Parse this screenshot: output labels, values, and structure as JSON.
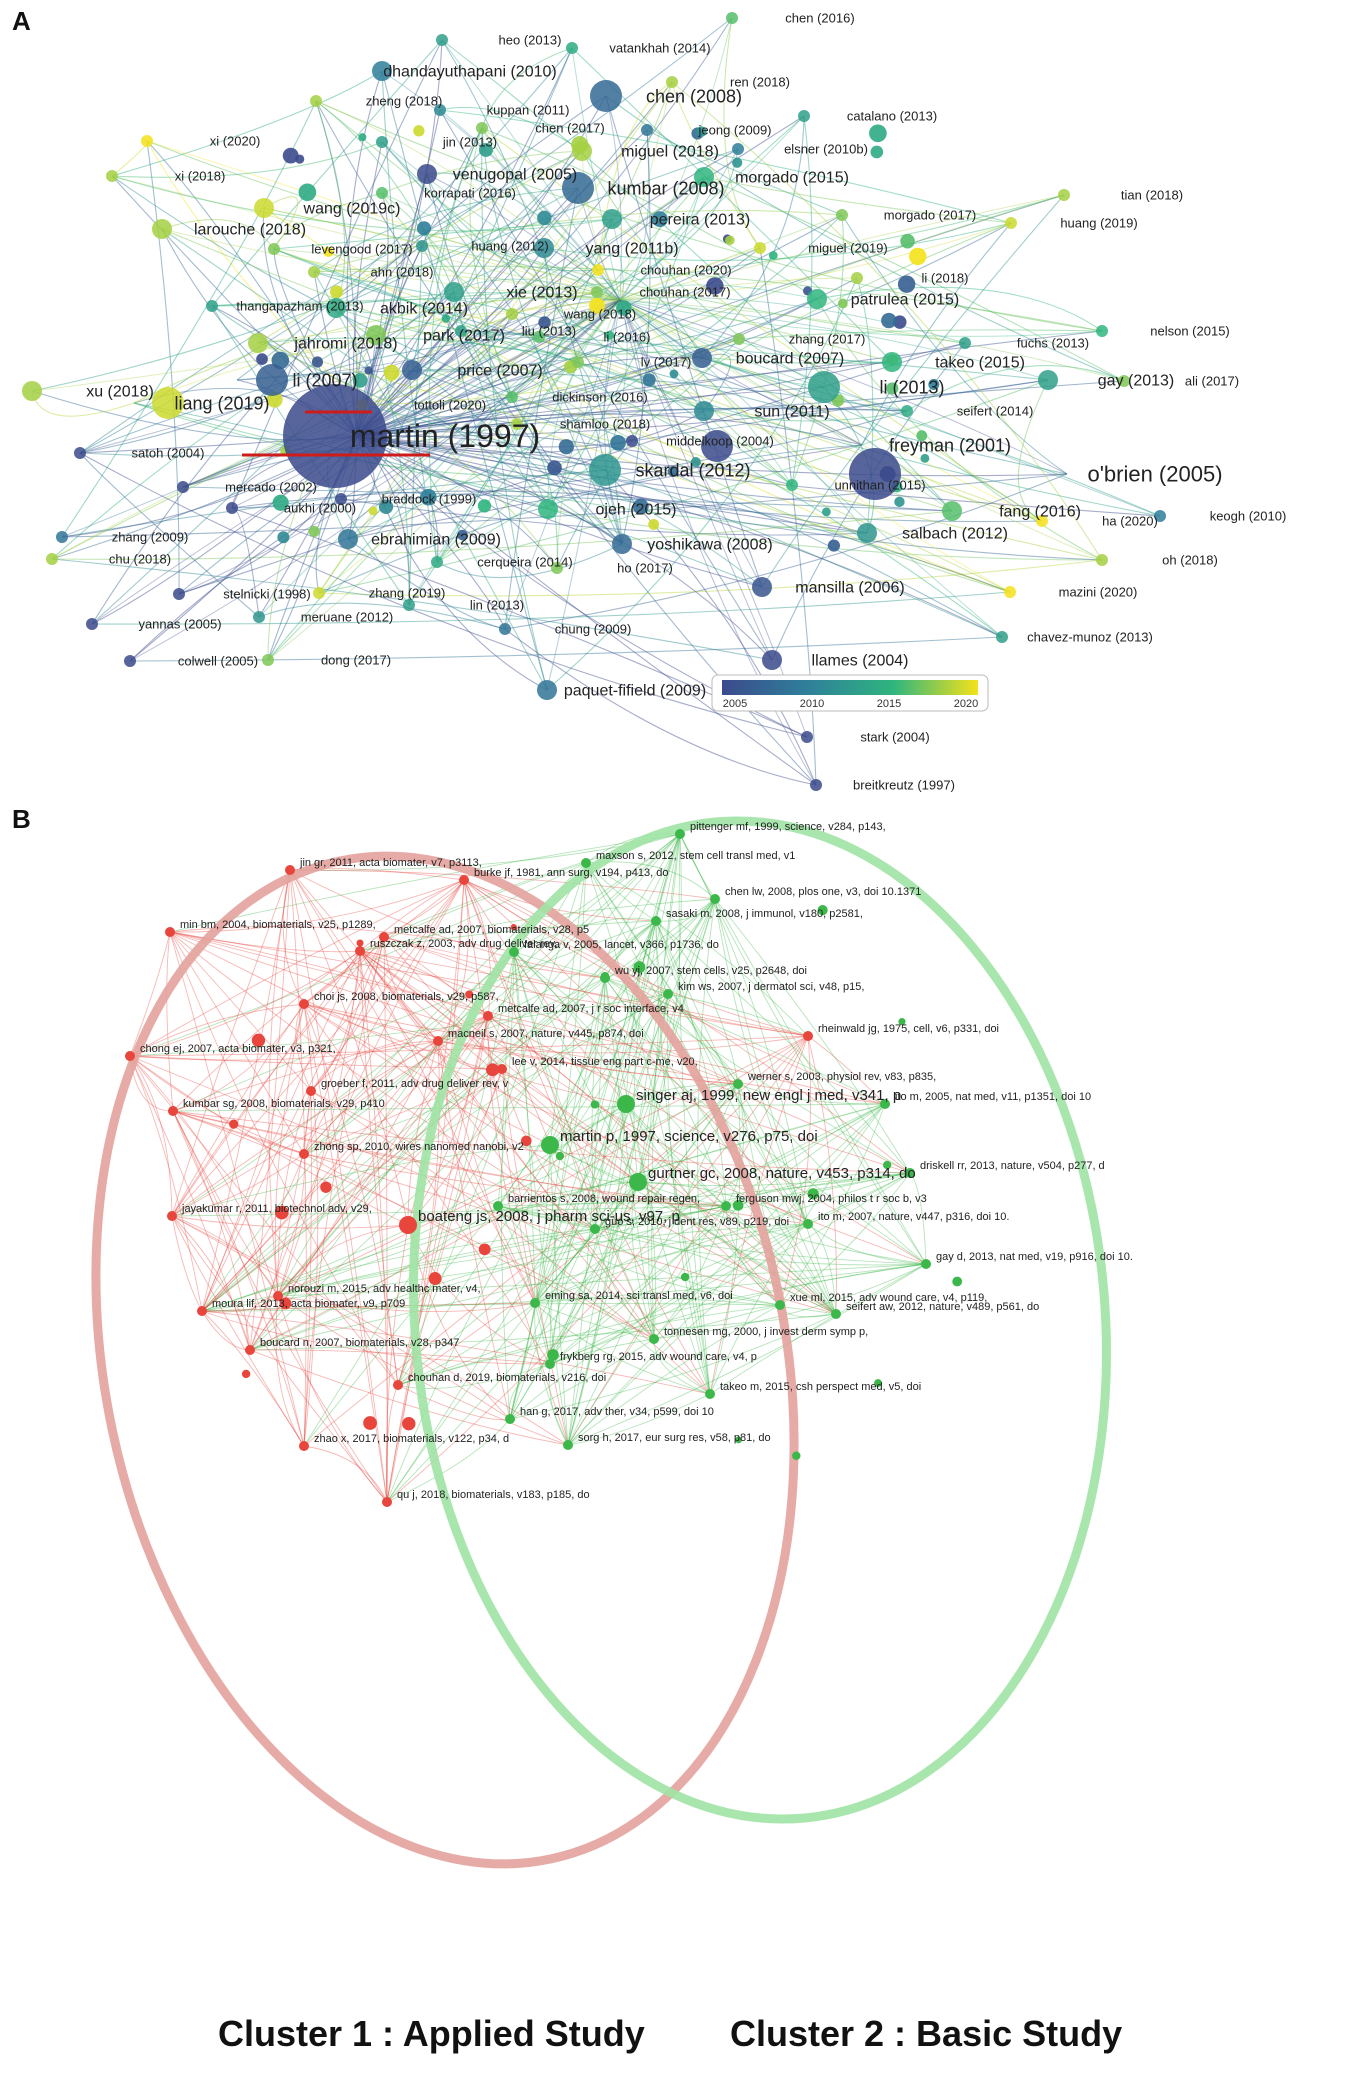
{
  "figure": {
    "panel_a_letter": "A",
    "panel_b_letter": "B",
    "caption_cluster1": "Cluster 1 : Applied Study",
    "caption_cluster2": "Cluster 2 : Basic Study"
  },
  "panel_a": {
    "legend": {
      "ticks": [
        "2005",
        "2010",
        "2015",
        "2020"
      ]
    },
    "nodes": [
      {
        "label": "chen (2016)",
        "year": 2016,
        "weight": 1
      },
      {
        "label": "heo (2013)",
        "year": 2013,
        "weight": 1
      },
      {
        "label": "vatankhah (2014)",
        "year": 2014,
        "weight": 1
      },
      {
        "label": "dhandayuthapani (2010)",
        "year": 2010,
        "weight": 2
      },
      {
        "label": "ren (2018)",
        "year": 2018,
        "weight": 1
      },
      {
        "label": "zheng (2018)",
        "year": 2018,
        "weight": 1
      },
      {
        "label": "kuppan (2011)",
        "year": 2011,
        "weight": 1
      },
      {
        "label": "chen (2008)",
        "year": 2008,
        "weight": 3
      },
      {
        "label": "catalano (2013)",
        "year": 2013,
        "weight": 1
      },
      {
        "label": "jin (2013)",
        "year": 2013,
        "weight": 1
      },
      {
        "label": "chen (2017)",
        "year": 2017,
        "weight": 1
      },
      {
        "label": "jeong (2009)",
        "year": 2009,
        "weight": 1
      },
      {
        "label": "xi (2020)",
        "year": 2020,
        "weight": 1
      },
      {
        "label": "miguel (2018)",
        "year": 2018,
        "weight": 2
      },
      {
        "label": "elsner (2010b)",
        "year": 2010,
        "weight": 1
      },
      {
        "label": "venugopal (2005)",
        "year": 2005,
        "weight": 2
      },
      {
        "label": "xi (2018)",
        "year": 2018,
        "weight": 1
      },
      {
        "label": "kumbar (2008)",
        "year": 2008,
        "weight": 3
      },
      {
        "label": "morgado (2015)",
        "year": 2015,
        "weight": 2
      },
      {
        "label": "korrapati (2016)",
        "year": 2016,
        "weight": 1
      },
      {
        "label": "tian (2018)",
        "year": 2018,
        "weight": 1
      },
      {
        "label": "wang (2019c)",
        "year": 2019,
        "weight": 2
      },
      {
        "label": "pereira (2013)",
        "year": 2013,
        "weight": 2
      },
      {
        "label": "morgado (2017)",
        "year": 2017,
        "weight": 1
      },
      {
        "label": "huang (2019)",
        "year": 2019,
        "weight": 1
      },
      {
        "label": "larouche (2018)",
        "year": 2018,
        "weight": 2
      },
      {
        "label": "levengood (2017)",
        "year": 2017,
        "weight": 1
      },
      {
        "label": "huang (2012)",
        "year": 2012,
        "weight": 1
      },
      {
        "label": "yang (2011b)",
        "year": 2011,
        "weight": 2
      },
      {
        "label": "miguel (2019)",
        "year": 2019,
        "weight": 1
      },
      {
        "label": "ahn (2018)",
        "year": 2018,
        "weight": 1
      },
      {
        "label": "chouhan (2020)",
        "year": 2020,
        "weight": 1
      },
      {
        "label": "li (2018)",
        "year": 2018,
        "weight": 1
      },
      {
        "label": "thangapazham (2013)",
        "year": 2013,
        "weight": 1
      },
      {
        "label": "akbik (2014)",
        "year": 2014,
        "weight": 2
      },
      {
        "label": "xie (2013)",
        "year": 2013,
        "weight": 2
      },
      {
        "label": "chouhan (2017)",
        "year": 2017,
        "weight": 1
      },
      {
        "label": "patrulea (2015)",
        "year": 2015,
        "weight": 2
      },
      {
        "label": "wang (2018)",
        "year": 2018,
        "weight": 1
      },
      {
        "label": "nelson (2015)",
        "year": 2015,
        "weight": 1
      },
      {
        "label": "park (2017)",
        "year": 2017,
        "weight": 2
      },
      {
        "label": "liu (2013)",
        "year": 2013,
        "weight": 1
      },
      {
        "label": "li (2016)",
        "year": 2016,
        "weight": 1
      },
      {
        "label": "zhang (2017)",
        "year": 2017,
        "weight": 1
      },
      {
        "label": "fuchs (2013)",
        "year": 2013,
        "weight": 1
      },
      {
        "label": "jahromi (2018)",
        "year": 2018,
        "weight": 2
      },
      {
        "label": "takeo (2015)",
        "year": 2015,
        "weight": 2
      },
      {
        "label": "boucard (2007)",
        "year": 2007,
        "weight": 2
      },
      {
        "label": "lv (2017)",
        "year": 2017,
        "weight": 1
      },
      {
        "label": "price (2007)",
        "year": 2007,
        "weight": 2
      },
      {
        "label": "li (2007)",
        "year": 2007,
        "weight": 3
      },
      {
        "label": "gay (2013)",
        "year": 2013,
        "weight": 2
      },
      {
        "label": "ali (2017)",
        "year": 2017,
        "weight": 1
      },
      {
        "label": "xu (2018)",
        "year": 2018,
        "weight": 2
      },
      {
        "label": "li (2013)",
        "year": 2013,
        "weight": 3
      },
      {
        "label": "liang (2019)",
        "year": 2019,
        "weight": 3
      },
      {
        "label": "dickinson (2016)",
        "year": 2016,
        "weight": 1
      },
      {
        "label": "tottoli (2020)",
        "year": 2020,
        "weight": 1
      },
      {
        "label": "seifert (2014)",
        "year": 2014,
        "weight": 1
      },
      {
        "label": "sun (2011)",
        "year": 2011,
        "weight": 2
      },
      {
        "label": "shamloo (2018)",
        "year": 2018,
        "weight": 1
      },
      {
        "label": "martin (1997)",
        "year": 1997,
        "weight": 6
      },
      {
        "label": "middelkoop (2004)",
        "year": 2004,
        "weight": 1
      },
      {
        "label": "freyman (2001)",
        "year": 2001,
        "weight": 3
      },
      {
        "label": "satoh (2004)",
        "year": 2004,
        "weight": 1
      },
      {
        "label": "skardal (2012)",
        "year": 2012,
        "weight": 3
      },
      {
        "label": "o'brien (2005)",
        "year": 2005,
        "weight": 4
      },
      {
        "label": "unnithan (2015)",
        "year": 2015,
        "weight": 1
      },
      {
        "label": "mercado (2002)",
        "year": 2002,
        "weight": 1
      },
      {
        "label": "braddock (1999)",
        "year": 1999,
        "weight": 1
      },
      {
        "label": "aukhi (2000)",
        "year": 2000,
        "weight": 1
      },
      {
        "label": "ojeh (2015)",
        "year": 2015,
        "weight": 2
      },
      {
        "label": "fang (2016)",
        "year": 2016,
        "weight": 2
      },
      {
        "label": "keogh (2010)",
        "year": 2010,
        "weight": 1
      },
      {
        "label": "ha (2020)",
        "year": 2020,
        "weight": 1
      },
      {
        "label": "zhang (2009)",
        "year": 2009,
        "weight": 1
      },
      {
        "label": "ebrahimian (2009)",
        "year": 2009,
        "weight": 2
      },
      {
        "label": "salbach (2012)",
        "year": 2012,
        "weight": 2
      },
      {
        "label": "yoshikawa (2008)",
        "year": 2008,
        "weight": 2
      },
      {
        "label": "chu (2018)",
        "year": 2018,
        "weight": 1
      },
      {
        "label": "cerqueira (2014)",
        "year": 2014,
        "weight": 1
      },
      {
        "label": "ho (2017)",
        "year": 2017,
        "weight": 1
      },
      {
        "label": "oh (2018)",
        "year": 2018,
        "weight": 1
      },
      {
        "label": "mansilla (2006)",
        "year": 2006,
        "weight": 2
      },
      {
        "label": "stelnicki (1998)",
        "year": 1998,
        "weight": 1
      },
      {
        "label": "zhang (2019)",
        "year": 2019,
        "weight": 1
      },
      {
        "label": "mazini (2020)",
        "year": 2020,
        "weight": 1
      },
      {
        "label": "meruane (2012)",
        "year": 2012,
        "weight": 1
      },
      {
        "label": "lin (2013)",
        "year": 2013,
        "weight": 1
      },
      {
        "label": "yannas (2005)",
        "year": 2005,
        "weight": 1
      },
      {
        "label": "chung (2009)",
        "year": 2009,
        "weight": 1
      },
      {
        "label": "chavez-munoz (2013)",
        "year": 2013,
        "weight": 1
      },
      {
        "label": "colwell (2005)",
        "year": 2005,
        "weight": 1
      },
      {
        "label": "dong (2017)",
        "year": 2017,
        "weight": 1
      },
      {
        "label": "llames (2004)",
        "year": 2004,
        "weight": 2
      },
      {
        "label": "paquet-fifield (2009)",
        "year": 2009,
        "weight": 2
      },
      {
        "label": "stark (2004)",
        "year": 2004,
        "weight": 1
      },
      {
        "label": "breitkreutz (1997)",
        "year": 1997,
        "weight": 1
      }
    ]
  },
  "panel_b": {
    "nodes": [
      {
        "label": "pittenger mf, 1999, science, v284, p143,",
        "cluster": 2
      },
      {
        "label": "maxson s, 2012, stem cell transl med, v1",
        "cluster": 2
      },
      {
        "label": "jin gr, 2011, acta biomater, v7, p3113,",
        "cluster": 1
      },
      {
        "label": "burke jf, 1981, ann surg, v194, p413, do",
        "cluster": 1
      },
      {
        "label": "chen lw, 2008, plos one, v3, doi 10.1371",
        "cluster": 2
      },
      {
        "label": "sasaki m, 2008, j immunol, v180, p2581,",
        "cluster": 2
      },
      {
        "label": "min bm, 2004, biomaterials, v25, p1289,",
        "cluster": 1
      },
      {
        "label": "metcalfe ad, 2007, biomaterials, v28, p5",
        "cluster": 1
      },
      {
        "label": "ruszczak z, 2003, adv drug deliver rev,",
        "cluster": 1
      },
      {
        "label": "falanga v, 2005, lancet, v366, p1736, do",
        "cluster": 2
      },
      {
        "label": "wu yj, 2007, stem cells, v25, p2648, doi",
        "cluster": 2
      },
      {
        "label": "kim ws, 2007, j dermatol sci, v48, p15,",
        "cluster": 2
      },
      {
        "label": "choi js, 2008, biomaterials, v29, p587,",
        "cluster": 1
      },
      {
        "label": "metcalfe ad, 2007, j r soc interface, v4",
        "cluster": 1
      },
      {
        "label": "rheinwald jg, 1975, cell, v6, p331, doi",
        "cluster": 1
      },
      {
        "label": "macneil s, 2007, nature, v445, p874, doi",
        "cluster": 1
      },
      {
        "label": "chong ej, 2007, acta biomater, v3, p321,",
        "cluster": 1
      },
      {
        "label": "lee v, 2014, tissue eng part c-me, v20,",
        "cluster": 1
      },
      {
        "label": "werner s, 2003, physiol rev, v83, p835,",
        "cluster": 2
      },
      {
        "label": "groeber f, 2011, adv drug deliver rev, v",
        "cluster": 1
      },
      {
        "label": "singer aj, 1999, new engl j med, v341, p",
        "cluster": 2
      },
      {
        "label": "ito m, 2005, nat med, v11, p1351, doi 10",
        "cluster": 2
      },
      {
        "label": "kumbar sg, 2008, biomaterials, v29, p410",
        "cluster": 1
      },
      {
        "label": "martin p, 1997, science, v276, p75, doi",
        "cluster": 2
      },
      {
        "label": "zhong sp, 2010, wires nanomed nanobi, v2",
        "cluster": 1
      },
      {
        "label": "gurtner gc, 2008, nature, v453, p314, do",
        "cluster": 2
      },
      {
        "label": "driskell rr, 2013, nature, v504, p277, d",
        "cluster": 2
      },
      {
        "label": "barrientos s, 2008, wound repair regen,",
        "cluster": 2
      },
      {
        "label": "ferguson mwj, 2004, philos t r soc b, v3",
        "cluster": 2
      },
      {
        "label": "jayakumar r, 2011, biotechnol adv, v29,",
        "cluster": 1
      },
      {
        "label": "boateng js, 2008, j pharm sci-us, v97, p",
        "cluster": 1
      },
      {
        "label": "ito m, 2007, nature, v447, p316, doi 10.",
        "cluster": 2
      },
      {
        "label": "guo s, 2010, j dent res, v89, p219, doi",
        "cluster": 2
      },
      {
        "label": "gay d, 2013, nat med, v19, p916, doi 10.",
        "cluster": 2
      },
      {
        "label": "norouzi m, 2015, adv healthc mater, v4,",
        "cluster": 1
      },
      {
        "label": "xue ml, 2015, adv wound care, v4, p119,",
        "cluster": 2
      },
      {
        "label": "moura lif, 2013, acta biomater, v9, p709",
        "cluster": 1
      },
      {
        "label": "eming sa, 2014, sci transl med, v6, doi",
        "cluster": 2
      },
      {
        "label": "seifert aw, 2012, nature, v489, p561, do",
        "cluster": 2
      },
      {
        "label": "tonnesen mg, 2000, j invest derm symp p,",
        "cluster": 2
      },
      {
        "label": "boucard n, 2007, biomaterials, v28, p347",
        "cluster": 1
      },
      {
        "label": "frykberg rg, 2015, adv wound care, v4, p",
        "cluster": 2
      },
      {
        "label": "chouhan d, 2019, biomaterials, v216, doi",
        "cluster": 1
      },
      {
        "label": "takeo m, 2015, csh perspect med, v5, doi",
        "cluster": 2
      },
      {
        "label": "han g, 2017, adv ther, v34, p599, doi 10",
        "cluster": 2
      },
      {
        "label": "zhao x, 2017, biomaterials, v122, p34, d",
        "cluster": 1
      },
      {
        "label": "sorg h, 2017, eur surg res, v58, p81, do",
        "cluster": 2
      },
      {
        "label": "qu j, 2018, biomaterials, v183, p185, do",
        "cluster": 1
      }
    ]
  },
  "colors": {
    "cluster1": "#e8453c",
    "cluster2": "#3cb84a",
    "ellipse1": "#e3a29c",
    "ellipse2": "#9fe3a4",
    "underline": "#d01b1b",
    "viridis_2005": "#3b4a8c",
    "viridis_2010": "#2f7f9a",
    "viridis_2015": "#2fb57e",
    "viridis_2020": "#f4e21a"
  }
}
